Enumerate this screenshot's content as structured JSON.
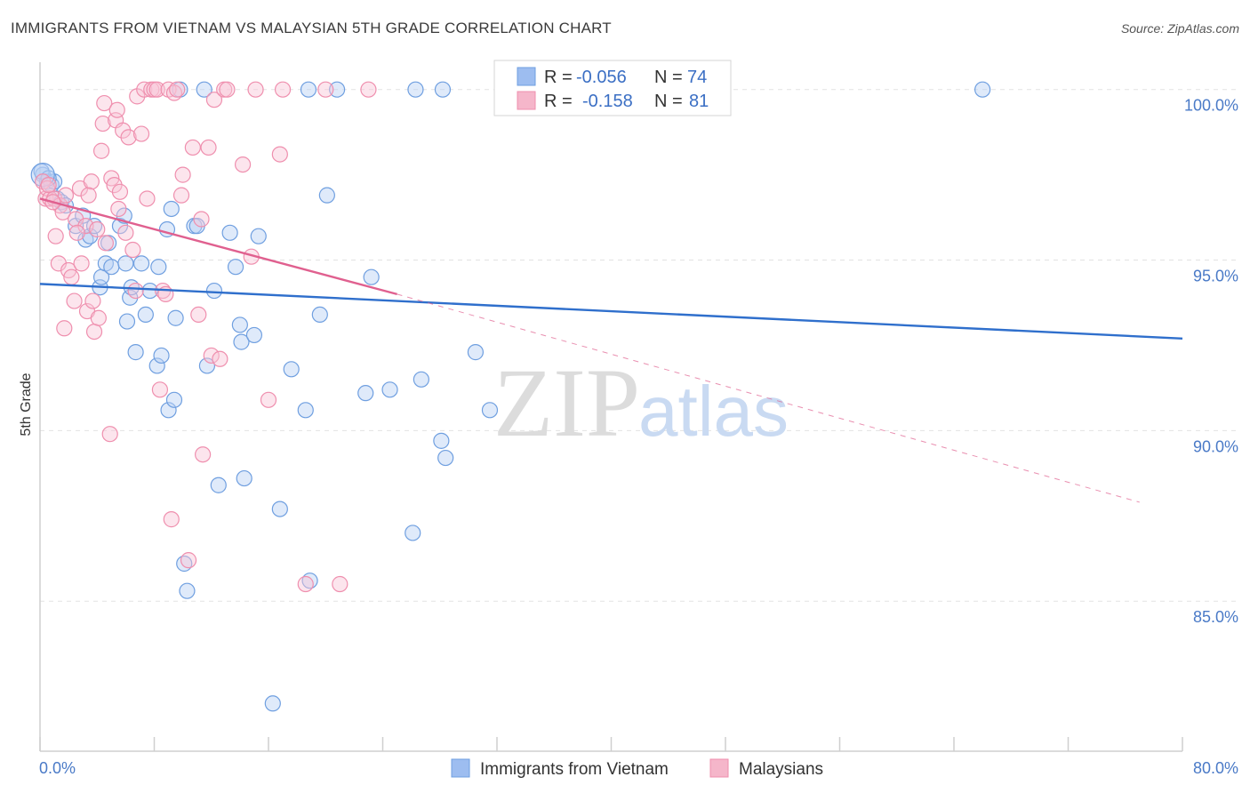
{
  "title": "IMMIGRANTS FROM VIETNAM VS MALAYSIAN 5TH GRADE CORRELATION CHART",
  "source": "Source: ZipAtlas.com",
  "watermark": {
    "zip": "ZIP",
    "atlas": "atlas"
  },
  "legend": {
    "rows": [
      {
        "r_label": "R =",
        "r_value": "-0.056",
        "n_label": "N =",
        "n_value": "74",
        "color": "#9dbdf0"
      },
      {
        "r_label": "R =",
        "r_value": "-0.158",
        "n_label": "N =",
        "n_value": "81",
        "color": "#f5b6ca"
      }
    ]
  },
  "bottom_legend": [
    "Immigrants from Vietnam",
    "Malaysians"
  ],
  "chart_data": {
    "type": "scatter",
    "title": "IMMIGRANTS FROM VIETNAM VS MALAYSIAN 5TH GRADE CORRELATION CHART",
    "xlabel": "",
    "ylabel": "5th Grade",
    "xlim": [
      0,
      80
    ],
    "ylim": [
      80.6,
      100.8
    ],
    "x_tick_labels": [
      "0.0%",
      "80.0%"
    ],
    "y_ticks": [
      85,
      90,
      95,
      100
    ],
    "y_tick_labels": [
      "85.0%",
      "90.0%",
      "95.0%",
      "100.0%"
    ],
    "grid": true,
    "legend_position": "top-center",
    "series": [
      {
        "name": "Immigrants from Vietnam",
        "color": "#6f9fe0",
        "fill": "#b8d0f3",
        "trend": {
          "x": [
            0,
            80
          ],
          "y": [
            94.3,
            92.7
          ],
          "style": "solid",
          "color": "#2f6fcc"
        },
        "points": [
          [
            0.2,
            97.5
          ],
          [
            0.5,
            97.3
          ],
          [
            0.8,
            97.2
          ],
          [
            1.0,
            97.3
          ],
          [
            1.2,
            96.8
          ],
          [
            1.5,
            96.7
          ],
          [
            1.8,
            96.6
          ],
          [
            2.5,
            96.0
          ],
          [
            3.2,
            95.6
          ],
          [
            3.5,
            95.7
          ],
          [
            3.8,
            96.0
          ],
          [
            4.2,
            94.2
          ],
          [
            4.3,
            94.5
          ],
          [
            4.6,
            94.9
          ],
          [
            5.0,
            94.8
          ],
          [
            5.6,
            96.0
          ],
          [
            6.0,
            94.9
          ],
          [
            6.1,
            93.2
          ],
          [
            6.3,
            93.9
          ],
          [
            6.4,
            94.2
          ],
          [
            6.7,
            92.3
          ],
          [
            7.1,
            94.9
          ],
          [
            7.4,
            93.4
          ],
          [
            7.7,
            94.1
          ],
          [
            8.2,
            91.9
          ],
          [
            8.3,
            94.8
          ],
          [
            8.5,
            92.2
          ],
          [
            9.0,
            90.6
          ],
          [
            9.2,
            96.5
          ],
          [
            9.4,
            90.9
          ],
          [
            9.5,
            93.3
          ],
          [
            10.1,
            86.1
          ],
          [
            10.3,
            85.3
          ],
          [
            10.8,
            96.0
          ],
          [
            11.0,
            96.0
          ],
          [
            11.5,
            100.0
          ],
          [
            11.7,
            91.9
          ],
          [
            12.5,
            88.4
          ],
          [
            13.3,
            95.8
          ],
          [
            13.7,
            94.8
          ],
          [
            14.0,
            93.1
          ],
          [
            14.1,
            92.6
          ],
          [
            14.3,
            88.6
          ],
          [
            15.3,
            95.7
          ],
          [
            16.3,
            82.0
          ],
          [
            16.8,
            87.7
          ],
          [
            17.6,
            91.8
          ],
          [
            18.6,
            90.6
          ],
          [
            18.8,
            100.0
          ],
          [
            18.9,
            85.6
          ],
          [
            19.6,
            93.4
          ],
          [
            20.1,
            96.9
          ],
          [
            20.8,
            100.0
          ],
          [
            22.8,
            91.1
          ],
          [
            23.2,
            94.5
          ],
          [
            24.5,
            91.2
          ],
          [
            26.1,
            87.0
          ],
          [
            26.3,
            100.0
          ],
          [
            26.7,
            91.5
          ],
          [
            28.1,
            89.7
          ],
          [
            28.2,
            100.0
          ],
          [
            28.4,
            89.2
          ],
          [
            30.5,
            92.3
          ],
          [
            31.5,
            90.6
          ],
          [
            0.1,
            97.6
          ],
          [
            0.6,
            97.4
          ],
          [
            3.0,
            96.3
          ],
          [
            4.8,
            95.5
          ],
          [
            5.9,
            96.3
          ],
          [
            9.8,
            100.0
          ],
          [
            15.0,
            92.8
          ],
          [
            8.9,
            95.9
          ],
          [
            12.2,
            94.1
          ],
          [
            66.0,
            100.0
          ]
        ]
      },
      {
        "name": "Malaysians",
        "color": "#ef8fae",
        "fill": "#f8c6d6",
        "trend": {
          "x": [
            0,
            25
          ],
          "y": [
            96.8,
            94.0
          ],
          "style": "solid",
          "color": "#e0608f",
          "ext": {
            "x": [
              25,
              77
            ],
            "y": [
              94.0,
              87.9
            ],
            "style": "dashed"
          }
        },
        "points": [
          [
            0.2,
            97.3
          ],
          [
            0.4,
            96.8
          ],
          [
            0.5,
            97.1
          ],
          [
            0.7,
            96.8
          ],
          [
            1.0,
            96.8
          ],
          [
            1.1,
            95.7
          ],
          [
            1.3,
            94.9
          ],
          [
            1.4,
            96.6
          ],
          [
            1.6,
            96.4
          ],
          [
            1.7,
            93.0
          ],
          [
            2.0,
            94.7
          ],
          [
            2.2,
            94.5
          ],
          [
            2.4,
            93.8
          ],
          [
            2.5,
            96.2
          ],
          [
            2.8,
            97.1
          ],
          [
            2.9,
            94.9
          ],
          [
            3.2,
            96.0
          ],
          [
            3.3,
            93.5
          ],
          [
            3.6,
            97.3
          ],
          [
            3.7,
            93.8
          ],
          [
            3.8,
            92.9
          ],
          [
            4.1,
            93.3
          ],
          [
            4.3,
            98.2
          ],
          [
            4.4,
            99.0
          ],
          [
            4.5,
            99.6
          ],
          [
            4.6,
            95.5
          ],
          [
            4.9,
            89.9
          ],
          [
            5.0,
            97.4
          ],
          [
            5.2,
            97.2
          ],
          [
            5.3,
            99.1
          ],
          [
            5.4,
            99.4
          ],
          [
            5.6,
            97.0
          ],
          [
            5.8,
            98.8
          ],
          [
            6.0,
            95.8
          ],
          [
            6.2,
            98.6
          ],
          [
            6.5,
            95.3
          ],
          [
            6.8,
            99.8
          ],
          [
            7.1,
            98.7
          ],
          [
            7.3,
            100.0
          ],
          [
            7.8,
            100.0
          ],
          [
            8.0,
            100.0
          ],
          [
            8.2,
            100.0
          ],
          [
            8.4,
            91.2
          ],
          [
            8.6,
            94.1
          ],
          [
            8.8,
            94.0
          ],
          [
            9.0,
            100.0
          ],
          [
            9.2,
            87.4
          ],
          [
            9.4,
            99.9
          ],
          [
            9.6,
            100.0
          ],
          [
            10.0,
            97.5
          ],
          [
            10.4,
            86.2
          ],
          [
            10.7,
            98.3
          ],
          [
            11.1,
            93.4
          ],
          [
            11.3,
            96.2
          ],
          [
            11.4,
            89.3
          ],
          [
            11.8,
            98.3
          ],
          [
            12.0,
            92.2
          ],
          [
            12.2,
            99.7
          ],
          [
            12.6,
            92.1
          ],
          [
            12.9,
            100.0
          ],
          [
            13.1,
            100.0
          ],
          [
            14.2,
            97.8
          ],
          [
            14.8,
            95.1
          ],
          [
            15.1,
            100.0
          ],
          [
            16.0,
            90.9
          ],
          [
            16.8,
            98.1
          ],
          [
            17.0,
            100.0
          ],
          [
            18.6,
            85.5
          ],
          [
            20.0,
            100.0
          ],
          [
            21.0,
            85.5
          ],
          [
            23.0,
            100.0
          ],
          [
            0.6,
            97.2
          ],
          [
            1.8,
            96.9
          ],
          [
            2.6,
            95.8
          ],
          [
            6.7,
            94.1
          ],
          [
            0.9,
            96.7
          ],
          [
            3.4,
            96.9
          ],
          [
            7.5,
            96.8
          ],
          [
            9.9,
            96.9
          ],
          [
            5.5,
            96.5
          ],
          [
            4.0,
            95.9
          ]
        ]
      }
    ]
  }
}
